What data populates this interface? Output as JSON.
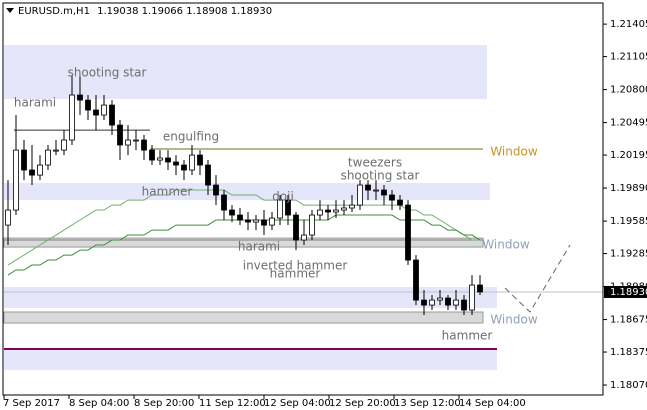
{
  "chart_data": {
    "type": "candlestick",
    "header": {
      "symbol": "EURUSD.m,H1",
      "ohlc": [
        "1.19038",
        "1.19066",
        "1.18908",
        "1.18930"
      ]
    },
    "ylim": [
      1.17978,
      1.21591
    ],
    "yticks": [
      {
        "value": 1.21405,
        "label": "1.21405"
      },
      {
        "value": 1.21105,
        "label": "1.21105"
      },
      {
        "value": 1.208,
        "label": "1.20800"
      },
      {
        "value": 1.20495,
        "label": "1.20495"
      },
      {
        "value": 1.20195,
        "label": "1.20195"
      },
      {
        "value": 1.1989,
        "label": "1.19890"
      },
      {
        "value": 1.19585,
        "label": "1.19585"
      },
      {
        "value": 1.19285,
        "label": "1.19285"
      },
      {
        "value": 1.1898,
        "label": "1.18980"
      },
      {
        "value": 1.18675,
        "label": "1.18675"
      },
      {
        "value": 1.18375,
        "label": "1.18375"
      },
      {
        "value": 1.1807,
        "label": "1.18070"
      }
    ],
    "time_labels": [
      "7 Sep 2017",
      "8 Sep 04:00",
      "8 Sep 20:00",
      "11 Sep 12:00",
      "12 Sep 04:00",
      "12 Sep 20:00",
      "13 Sep 12:00",
      "14 Sep 04:00"
    ],
    "current_price": {
      "value": 1.1893,
      "label": "1.18930"
    },
    "up_color": "#ffffff",
    "down_color": "#000000",
    "wick_color": "#000000",
    "open": [
      1.19548,
      1.19687,
      1.20241,
      1.20057,
      1.2001,
      1.20103,
      1.20241,
      1.20241,
      1.20334,
      1.2075,
      1.20703,
      1.20611,
      1.20565,
      1.20657,
      1.20472,
      1.20288,
      1.20334,
      1.20334,
      1.20241,
      1.20149,
      1.20168,
      1.20131,
      1.20103,
      1.20057,
      1.20195,
      1.20103,
      1.19918,
      1.19826,
      1.19687,
      1.19641,
      1.19595,
      1.19576,
      1.19595,
      1.19548,
      1.19613,
      1.19779,
      1.19641,
      1.1941,
      1.19456,
      1.19641,
      1.19687,
      1.19669,
      1.19687,
      1.19706,
      1.19733,
      1.19918,
      1.19872,
      1.19872,
      1.19826,
      1.19779,
      1.19733,
      1.19225,
      1.18855,
      1.18809,
      1.18855,
      1.18874,
      1.18809,
      1.18855,
      1.18763,
      1.18994
    ],
    "high": [
      1.19964,
      1.20565,
      1.20334,
      1.20288,
      1.20195,
      1.20288,
      1.20334,
      1.20426,
      1.20934,
      1.20934,
      1.2075,
      1.2075,
      1.2075,
      1.20703,
      1.20519,
      1.20472,
      1.20426,
      1.2038,
      1.20288,
      1.20241,
      1.20241,
      1.20195,
      1.20149,
      1.20288,
      1.20241,
      1.20149,
      1.2001,
      1.19872,
      1.19733,
      1.19706,
      1.19669,
      1.19641,
      1.19687,
      1.19669,
      1.19826,
      1.19826,
      1.19669,
      1.19595,
      1.19687,
      1.19779,
      1.19733,
      1.19779,
      1.19779,
      1.19826,
      1.19964,
      1.19964,
      1.19964,
      1.19918,
      1.19872,
      1.19826,
      1.19779,
      1.19271,
      1.18948,
      1.18902,
      1.18948,
      1.18902,
      1.18948,
      1.18902,
      1.19086,
      1.19086
    ],
    "low": [
      1.19364,
      1.19641,
      1.19964,
      1.19918,
      1.19964,
      1.20057,
      1.20195,
      1.20195,
      1.20288,
      1.20565,
      1.20519,
      1.20426,
      1.20519,
      1.2038,
      1.20149,
      1.20195,
      1.20241,
      1.20149,
      1.20103,
      1.20103,
      1.20057,
      1.2001,
      1.19964,
      1.2001,
      1.2001,
      1.19826,
      1.19733,
      1.19595,
      1.19576,
      1.19548,
      1.19502,
      1.19502,
      1.19456,
      1.19502,
      1.19548,
      1.19548,
      1.19317,
      1.19364,
      1.1941,
      1.19595,
      1.19595,
      1.19613,
      1.19641,
      1.19669,
      1.19687,
      1.19779,
      1.19779,
      1.19733,
      1.19687,
      1.19687,
      1.19179,
      1.18809,
      1.18717,
      1.18763,
      1.18809,
      1.18763,
      1.18763,
      1.18717,
      1.18717,
      1.18902
    ],
    "close": [
      1.19687,
      1.20241,
      1.20057,
      1.2001,
      1.20103,
      1.20241,
      1.20241,
      1.20334,
      1.2075,
      1.20703,
      1.20611,
      1.20565,
      1.20657,
      1.20472,
      1.20288,
      1.20334,
      1.20334,
      1.20241,
      1.20149,
      1.20168,
      1.20131,
      1.20103,
      1.20057,
      1.20195,
      1.20103,
      1.19918,
      1.19826,
      1.19687,
      1.19641,
      1.19595,
      1.19576,
      1.19595,
      1.19548,
      1.19613,
      1.19779,
      1.19641,
      1.1941,
      1.19456,
      1.19641,
      1.19687,
      1.19669,
      1.19687,
      1.19706,
      1.19733,
      1.19918,
      1.19872,
      1.19872,
      1.19826,
      1.19779,
      1.19733,
      1.19225,
      1.18855,
      1.18809,
      1.18855,
      1.18874,
      1.18809,
      1.18855,
      1.18763,
      1.18994,
      1.1893
    ],
    "moving_averages": [
      {
        "color": "#6fb06f",
        "values": [
          1.19179,
          1.19225,
          1.19271,
          1.19317,
          1.19364,
          1.1941,
          1.19456,
          1.19502,
          1.19548,
          1.19595,
          1.19641,
          1.19687,
          1.19687,
          1.19733,
          1.19733,
          1.19779,
          1.19779,
          1.19779,
          1.19826,
          1.19826,
          1.19826,
          1.19872,
          1.19872,
          1.19872,
          1.19872,
          1.19872,
          1.19872,
          1.19872,
          1.19826,
          1.19826,
          1.19826,
          1.19826,
          1.19779,
          1.19779,
          1.19779,
          1.19779,
          1.19779,
          1.19733,
          1.19733,
          1.19733,
          1.19733,
          1.19733,
          1.19733,
          1.19733,
          1.19733,
          1.19733,
          1.19733,
          1.19733,
          1.19733,
          1.19733,
          1.19687,
          1.19687,
          1.19641,
          1.19641,
          1.19595,
          1.19548,
          1.19502,
          1.19456,
          1.1941,
          1.1941
        ]
      },
      {
        "color": "#3c8f3c",
        "values": [
          1.19086,
          1.19133,
          1.19133,
          1.19179,
          1.19179,
          1.19225,
          1.19225,
          1.19271,
          1.19271,
          1.19317,
          1.19317,
          1.19364,
          1.19364,
          1.1941,
          1.1941,
          1.19456,
          1.19456,
          1.19456,
          1.19502,
          1.19502,
          1.19502,
          1.19548,
          1.19548,
          1.19548,
          1.19548,
          1.19548,
          1.19595,
          1.19595,
          1.19595,
          1.19595,
          1.19595,
          1.19595,
          1.19595,
          1.19595,
          1.19595,
          1.19595,
          1.19595,
          1.19595,
          1.19595,
          1.19595,
          1.19595,
          1.19641,
          1.19641,
          1.19641,
          1.19641,
          1.19641,
          1.19641,
          1.19641,
          1.19641,
          1.19595,
          1.19595,
          1.19595,
          1.19595,
          1.19548,
          1.19548,
          1.19502,
          1.19502,
          1.19456,
          1.19456,
          1.1941
        ]
      }
    ],
    "zones": [
      {
        "low": 1.20713,
        "high": 1.21212,
        "color": "#e6e6fa"
      },
      {
        "low": 1.19779,
        "high": 1.19937,
        "color": "#e6e6fa"
      },
      {
        "low": 1.19345,
        "high": 1.19428,
        "color": "#d9d9d9"
      },
      {
        "low": 1.18782,
        "high": 1.18976,
        "color": "#e6e6fa"
      },
      {
        "low": 1.18643,
        "high": 1.18745,
        "color": "#d9d9d9"
      },
      {
        "low": 1.18209,
        "high": 1.18393,
        "color": "#e6e6fa"
      }
    ],
    "levels": [
      {
        "value": 1.20426,
        "color": "#333333"
      },
      {
        "value": 1.20251,
        "color": "#6b6b1e"
      },
      {
        "value": 1.1941,
        "color": "#808080"
      },
      {
        "value": 1.18403,
        "color": "#800060"
      }
    ],
    "annotations": [
      {
        "text": "harami",
        "color": "#6e6e6e"
      },
      {
        "text": "shooting star",
        "color": "#6e6e6e"
      },
      {
        "text": "engulfing",
        "color": "#6e6e6e"
      },
      {
        "text": "hammer",
        "color": "#6e6e6e"
      },
      {
        "text": "doji",
        "color": "#6e6e6e"
      },
      {
        "text": "tweezers",
        "color": "#6e6e6e"
      },
      {
        "text": "shooting star",
        "color": "#6e6e6e"
      },
      {
        "text": "harami",
        "color": "#6e6e6e"
      },
      {
        "text": "inverted hammer",
        "color": "#6e6e6e"
      },
      {
        "text": "hammer",
        "color": "#6e6e6e"
      },
      {
        "text": "hammer",
        "color": "#6e6e6e"
      },
      {
        "text": "Window",
        "color": "#c8961e"
      },
      {
        "text": "Window",
        "color": "#8fa0b8"
      },
      {
        "text": "Window",
        "color": "#8fa0b8"
      }
    ]
  }
}
